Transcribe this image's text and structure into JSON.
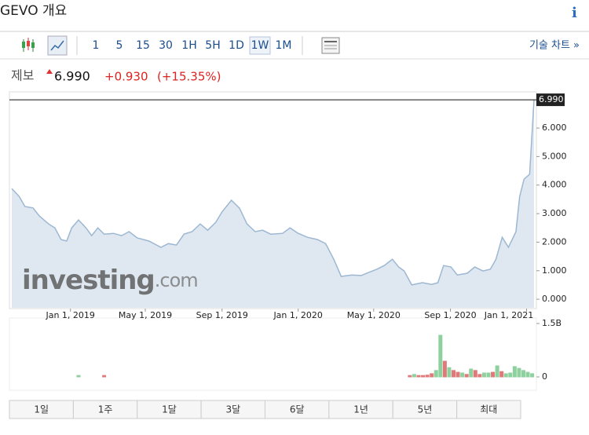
{
  "header": {
    "title": "GEVO 개요",
    "info": "i"
  },
  "toolbar": {
    "intervals": [
      "1",
      "5",
      "15",
      "30",
      "1H",
      "5H",
      "1D",
      "1W",
      "1M"
    ],
    "selected": "1W",
    "link": "기술 차트 »"
  },
  "quote": {
    "label": "제보",
    "price": "6.990",
    "change": "+0.930",
    "change_percent": "(+15.35%)"
  },
  "watermark": {
    "brand": "investing",
    "suffix": ".com"
  },
  "periods": [
    "1일",
    "1주",
    "1달",
    "3달",
    "6달",
    "1년",
    "5년",
    "최대"
  ],
  "chart_data": [
    {
      "type": "area",
      "x": [
        "2018-09-29",
        "2018-10-11",
        "2018-10-20",
        "2018-11-02",
        "2018-11-12",
        "2018-11-27",
        "2018-12-07",
        "2018-12-17",
        "2018-12-26",
        "2019-01-03",
        "2019-01-14",
        "2019-01-26",
        "2019-02-04",
        "2019-02-14",
        "2019-02-24",
        "2019-03-11",
        "2019-03-24",
        "2019-04-05",
        "2019-04-18",
        "2019-05-07",
        "2019-05-26",
        "2019-06-07",
        "2019-06-20",
        "2019-07-02",
        "2019-07-15",
        "2019-07-28",
        "2019-08-09",
        "2019-08-22",
        "2019-09-01",
        "2019-09-16",
        "2019-09-29",
        "2019-10-11",
        "2019-10-24",
        "2019-11-05",
        "2019-11-18",
        "2019-12-07",
        "2019-12-19",
        "2020-01-01",
        "2020-01-16",
        "2020-02-01",
        "2020-02-14",
        "2020-02-27",
        "2020-03-10",
        "2020-03-27",
        "2020-04-11",
        "2020-04-23",
        "2020-05-06",
        "2020-05-18",
        "2020-05-31",
        "2020-06-10",
        "2020-06-19",
        "2020-07-01",
        "2020-07-18",
        "2020-08-02",
        "2020-08-12",
        "2020-08-21",
        "2020-09-02",
        "2020-09-12",
        "2020-09-28",
        "2020-10-10",
        "2020-10-23",
        "2020-11-04",
        "2020-11-13",
        "2020-11-23",
        "2020-12-03",
        "2020-12-15",
        "2020-12-21",
        "2020-12-28",
        "2021-01-06",
        "2021-01-13"
      ],
      "values": [
        3.88,
        3.6,
        3.25,
        3.2,
        2.92,
        2.64,
        2.5,
        2.09,
        2.04,
        2.5,
        2.78,
        2.5,
        2.23,
        2.5,
        2.28,
        2.31,
        2.23,
        2.37,
        2.15,
        2.04,
        1.82,
        1.95,
        1.9,
        2.28,
        2.37,
        2.64,
        2.42,
        2.7,
        3.06,
        3.47,
        3.19,
        2.64,
        2.37,
        2.42,
        2.28,
        2.31,
        2.5,
        2.31,
        2.17,
        2.09,
        1.95,
        1.4,
        0.8,
        0.85,
        0.83,
        0.94,
        1.05,
        1.18,
        1.4,
        1.13,
        0.99,
        0.5,
        0.58,
        0.52,
        0.58,
        1.18,
        1.13,
        0.85,
        0.91,
        1.13,
        0.99,
        1.05,
        1.4,
        2.17,
        1.82,
        2.37,
        3.6,
        4.21,
        4.38,
        6.99
      ],
      "value_labels": [
        null,
        null,
        null,
        null,
        null,
        null,
        null,
        null,
        null,
        null,
        null,
        null,
        null,
        null,
        null,
        null,
        null,
        null,
        null,
        null,
        null,
        null,
        null,
        null,
        null,
        null,
        null,
        null,
        null,
        null,
        null,
        null,
        null,
        null,
        null,
        null,
        null,
        null,
        null,
        null,
        null,
        null,
        null,
        null,
        null,
        null,
        null,
        null,
        null,
        null,
        null,
        null,
        null,
        null,
        null,
        null,
        null,
        null,
        null,
        null,
        null,
        null,
        null,
        null,
        null,
        null,
        null,
        null,
        null,
        "6.990"
      ],
      "color": "#9db7d2",
      "fill": "#dfe8f1",
      "xlim": [
        "2018-09-29",
        "2021-01-13"
      ],
      "xticks": [
        {
          "value": "2019-01-01",
          "label": "Jan 1, 2019"
        },
        {
          "value": "2019-05-01",
          "label": "May 1, 2019"
        },
        {
          "value": "2019-09-01",
          "label": "Sep 1, 2019"
        },
        {
          "value": "2020-01-01",
          "label": "Jan 1, 2020"
        },
        {
          "value": "2020-05-01",
          "label": "May 1, 2020"
        },
        {
          "value": "2020-09-01",
          "label": "Sep 1, 2020"
        },
        {
          "value": "2021-01-01",
          "label": "Jan 1, 2021"
        }
      ],
      "ylim": [
        -0.3,
        7.24
      ],
      "yticks": [
        {
          "value": 0,
          "label": "0.000"
        },
        {
          "value": 1,
          "label": "1.000"
        },
        {
          "value": 2,
          "label": "2.000"
        },
        {
          "value": 3,
          "label": "3.000"
        },
        {
          "value": 4,
          "label": "4.000"
        },
        {
          "value": 5,
          "label": "5.000"
        },
        {
          "value": 6,
          "label": "6.000"
        }
      ]
    },
    {
      "type": "bar",
      "x": [
        "2019-01-14",
        "2019-02-24",
        "2020-06-28",
        "2020-07-05",
        "2020-07-12",
        "2020-07-19",
        "2020-07-26",
        "2020-08-02",
        "2020-08-09",
        "2020-08-16",
        "2020-08-23",
        "2020-08-30",
        "2020-09-06",
        "2020-09-13",
        "2020-09-20",
        "2020-09-27",
        "2020-10-04",
        "2020-10-11",
        "2020-10-18",
        "2020-10-25",
        "2020-11-01",
        "2020-11-08",
        "2020-11-15",
        "2020-11-22",
        "2020-11-29",
        "2020-12-06",
        "2020-12-13",
        "2020-12-20",
        "2020-12-27",
        "2021-01-03",
        "2021-01-10"
      ],
      "values": [
        40000000,
        40000000,
        40000000,
        70000000,
        40000000,
        40000000,
        50000000,
        90000000,
        180000000,
        1170000000,
        440000000,
        260000000,
        180000000,
        130000000,
        110000000,
        70000000,
        220000000,
        180000000,
        70000000,
        110000000,
        110000000,
        130000000,
        310000000,
        150000000,
        90000000,
        110000000,
        290000000,
        240000000,
        180000000,
        130000000,
        90000000
      ],
      "colors": [
        "#8fd19e",
        "#e07a7a",
        "#e07a7a",
        "#8fd19e",
        "#e07a7a",
        "#e07a7a",
        "#e07a7a",
        "#e07a7a",
        "#8fd19e",
        "#8fd19e",
        "#e07a7a",
        "#8fd19e",
        "#e07a7a",
        "#e07a7a",
        "#8fd19e",
        "#e07a7a",
        "#8fd19e",
        "#e07a7a",
        "#e07a7a",
        "#8fd19e",
        "#8fd19e",
        "#e07a7a",
        "#8fd19e",
        "#e07a7a",
        "#8fd19e",
        "#8fd19e",
        "#8fd19e",
        "#8fd19e",
        "#8fd19e",
        "#8fd19e",
        "#8fd19e"
      ],
      "xlim": [
        "2018-09-29",
        "2021-01-13"
      ],
      "ylim": [
        0,
        1500000000
      ],
      "yticks": [
        0,
        {
          "value": 1500000000,
          "label": "1.5B"
        }
      ]
    }
  ]
}
